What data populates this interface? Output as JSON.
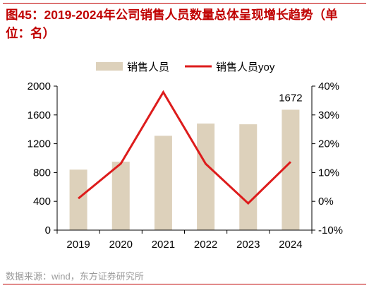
{
  "title": "图45：2019-2024年公司销售人员数量总体呈现增长趋势（单位：名）",
  "source": "数据来源：wind，东方证券研究所",
  "colors": {
    "title": "#c00000",
    "bar": "#ddd1bb",
    "line": "#dd1c1c",
    "axis": "#000000",
    "source": "#9b9b9b"
  },
  "chart_data": {
    "type": "bar",
    "categories": [
      "2019",
      "2020",
      "2021",
      "2022",
      "2023",
      "2024"
    ],
    "series": [
      {
        "name": "销售人员",
        "type": "bar",
        "axis": "left",
        "values": [
          840,
          950,
          1310,
          1480,
          1470,
          1672
        ]
      },
      {
        "name": "销售人员yoy",
        "type": "line",
        "axis": "right",
        "values": [
          1.0,
          13.1,
          37.9,
          13.0,
          -0.7,
          13.7
        ]
      }
    ],
    "yleft": {
      "min": 0,
      "max": 2000,
      "ticks": [
        "0",
        "400",
        "800",
        "1200",
        "1600",
        "2000"
      ]
    },
    "yright": {
      "min": -10,
      "max": 40,
      "ticks": [
        "-10%",
        "0%",
        "10%",
        "20%",
        "30%",
        "40%"
      ]
    },
    "data_labels": [
      {
        "category": "2024",
        "text": "1672"
      }
    ],
    "legend_position": "top",
    "grid": false
  }
}
